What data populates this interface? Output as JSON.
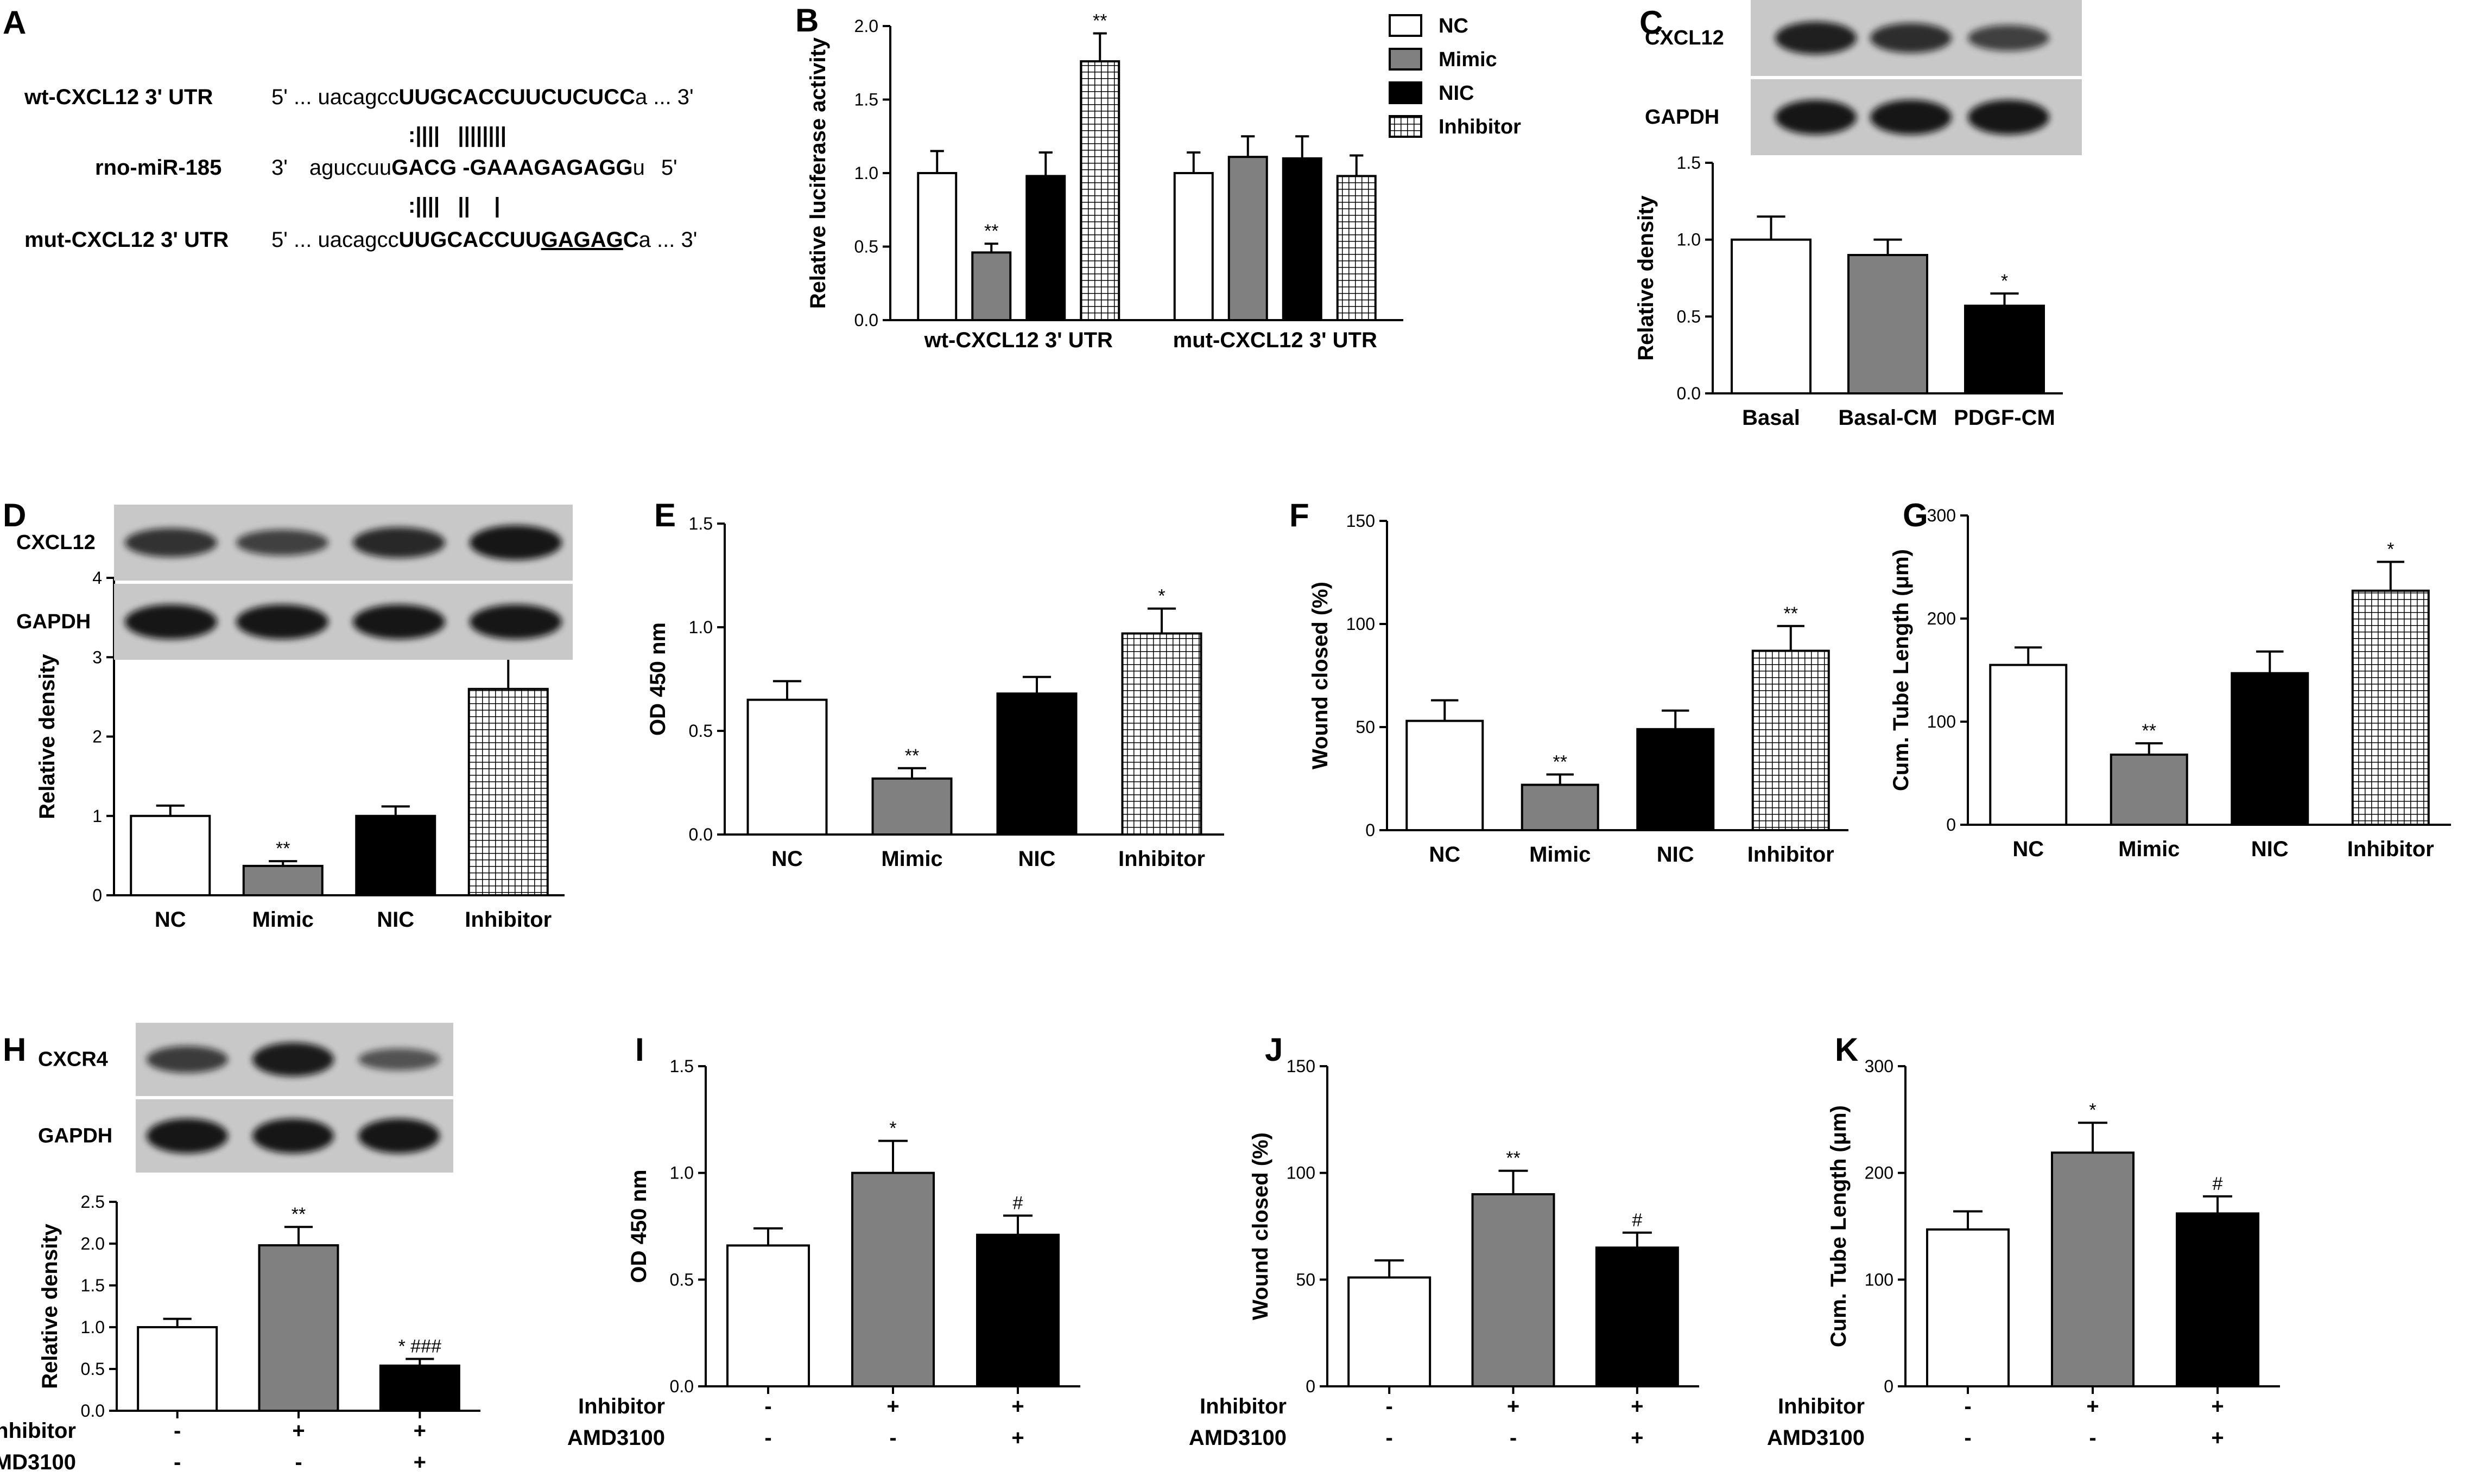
{
  "colors": {
    "NC": "#ffffff",
    "Mimic": "#808080",
    "NIC": "#000000",
    "Inhibitor": "hatched-white-black",
    "blot_background": "#c8c8c8",
    "band": "#111111"
  },
  "panelA": {
    "label": "A",
    "rows": [
      {
        "name": "wt-CXCL12 3' UTR",
        "end5": "5' ... ",
        "lower": "uacagcc",
        "upper": "UUGCACCUUCUCUCC",
        "tail": "a",
        "end3": " ... 3'"
      },
      {
        "name": "rno-miR-185",
        "end5": "3'",
        "lower": "aguccuu",
        "upper": "GACG -GAAAGAGAGG",
        "tail": "u",
        "end3": "5'"
      },
      {
        "name": "mut-CXCL12 3' UTR",
        "end5": "5' ... ",
        "lower": "uacagcc",
        "upper": "UUGCACCUU",
        "mutated": "GAGAG",
        "tail2": "C",
        "tail": "a",
        "end3": " ... 3'"
      }
    ],
    "pair_top": ":||||   ||||||||",
    "pair_bottom": ":||||   ||    |"
  },
  "panelB_blot": {},
  "blots": [
    {
      "id": "C",
      "rows": [
        "CXCL12",
        "GAPDH"
      ]
    },
    {
      "id": "D",
      "rows": [
        "CXCL12",
        "GAPDH"
      ]
    },
    {
      "id": "H",
      "rows": [
        "CXCR4",
        "GAPDH"
      ]
    }
  ],
  "chart_data": [
    {
      "panel": "B",
      "type": "bar",
      "ylabel": "Relative luciferase activity",
      "ylim": [
        0,
        2.0
      ],
      "yticks": [
        "0.0",
        "0.5",
        "1.0",
        "1.5",
        "2.0"
      ],
      "groups": [
        "wt-CXCL12 3' UTR",
        "mut-CXCL12 3' UTR"
      ],
      "legend": [
        "NC",
        "Mimic",
        "NIC",
        "Inhibitor"
      ],
      "series": [
        {
          "name": "NC",
          "values": [
            1.0,
            1.0
          ],
          "errors": [
            0.15,
            0.14
          ],
          "sig": [
            "",
            ""
          ]
        },
        {
          "name": "Mimic",
          "values": [
            0.46,
            1.11
          ],
          "errors": [
            0.06,
            0.14
          ],
          "sig": [
            "**",
            ""
          ]
        },
        {
          "name": "NIC",
          "values": [
            0.98,
            1.1
          ],
          "errors": [
            0.16,
            0.15
          ],
          "sig": [
            "",
            ""
          ]
        },
        {
          "name": "Inhibitor",
          "values": [
            1.76,
            0.98
          ],
          "errors": [
            0.19,
            0.14
          ],
          "sig": [
            "**",
            ""
          ]
        }
      ]
    },
    {
      "panel": "C",
      "type": "bar",
      "ylabel": "Relative density",
      "ylim": [
        0,
        1.5
      ],
      "yticks": [
        "0.0",
        "0.5",
        "1.0",
        "1.5"
      ],
      "categories": [
        "Basal",
        "Basal-CM",
        "PDGF-CM"
      ],
      "values": [
        1.0,
        0.9,
        0.57
      ],
      "errors": [
        0.15,
        0.1,
        0.08
      ],
      "sig": [
        "",
        "",
        "*"
      ]
    },
    {
      "panel": "D",
      "type": "bar",
      "ylabel": "Relative density",
      "ylim": [
        0,
        4
      ],
      "yticks": [
        "0",
        "1",
        "2",
        "3",
        "4"
      ],
      "categories": [
        "NC",
        "Mimic",
        "NIC",
        "Inhibitor"
      ],
      "values": [
        1.0,
        0.37,
        1.0,
        2.6
      ],
      "errors": [
        0.13,
        0.06,
        0.12,
        0.55
      ],
      "sig": [
        "",
        "**",
        "",
        "**"
      ]
    },
    {
      "panel": "E",
      "type": "bar",
      "ylabel": "OD 450 nm",
      "ylim": [
        0,
        1.5
      ],
      "yticks": [
        "0.0",
        "0.5",
        "1.0",
        "1.5"
      ],
      "categories": [
        "NC",
        "Mimic",
        "NIC",
        "Inhibitor"
      ],
      "values": [
        0.65,
        0.27,
        0.68,
        0.97
      ],
      "errors": [
        0.09,
        0.05,
        0.08,
        0.12
      ],
      "sig": [
        "",
        "**",
        "",
        "*"
      ]
    },
    {
      "panel": "F",
      "type": "bar",
      "ylabel": "Wound closed (%)",
      "ylim": [
        0,
        150
      ],
      "yticks": [
        "0",
        "50",
        "100",
        "150"
      ],
      "categories": [
        "NC",
        "Mimic",
        "NIC",
        "Inhibitor"
      ],
      "values": [
        53,
        22,
        49,
        87
      ],
      "errors": [
        10,
        5,
        9,
        12
      ],
      "sig": [
        "",
        "**",
        "",
        "**"
      ]
    },
    {
      "panel": "G",
      "type": "bar",
      "ylabel": "Cum. Tube Length (μm)",
      "ylim": [
        0,
        300
      ],
      "yticks": [
        "0",
        "100",
        "200",
        "300"
      ],
      "categories": [
        "NC",
        "Mimic",
        "NIC",
        "Inhibitor"
      ],
      "values": [
        155,
        68,
        147,
        227
      ],
      "errors": [
        17,
        11,
        21,
        28
      ],
      "sig": [
        "",
        "**",
        "",
        "*"
      ]
    },
    {
      "panel": "H",
      "type": "bar",
      "ylabel": "Relative density",
      "ylim": [
        0,
        2.5
      ],
      "yticks": [
        "0.0",
        "0.5",
        "1.0",
        "1.5",
        "2.0",
        "2.5"
      ],
      "rows": [
        {
          "name": "Inhibitor",
          "signs": [
            "-",
            "+",
            "+"
          ]
        },
        {
          "name": "AMD3100",
          "signs": [
            "-",
            "-",
            "+"
          ]
        }
      ],
      "values": [
        1.0,
        1.98,
        0.54
      ],
      "errors": [
        0.1,
        0.22,
        0.08
      ],
      "sig": [
        "",
        "**",
        "* ###"
      ]
    },
    {
      "panel": "I",
      "type": "bar",
      "ylabel": "OD 450 nm",
      "ylim": [
        0,
        1.5
      ],
      "yticks": [
        "0.0",
        "0.5",
        "1.0",
        "1.5"
      ],
      "rows": [
        {
          "name": "Inhibitor",
          "signs": [
            "-",
            "+",
            "+"
          ]
        },
        {
          "name": "AMD3100",
          "signs": [
            "-",
            "-",
            "+"
          ]
        }
      ],
      "values": [
        0.66,
        1.0,
        0.71
      ],
      "errors": [
        0.08,
        0.15,
        0.09
      ],
      "sig": [
        "",
        "*",
        "#"
      ]
    },
    {
      "panel": "J",
      "type": "bar",
      "ylabel": "Wound closed (%)",
      "ylim": [
        0,
        150
      ],
      "yticks": [
        "0",
        "50",
        "100",
        "150"
      ],
      "rows": [
        {
          "name": "Inhibitor",
          "signs": [
            "-",
            "+",
            "+"
          ]
        },
        {
          "name": "AMD3100",
          "signs": [
            "-",
            "-",
            "+"
          ]
        }
      ],
      "values": [
        51,
        90,
        65
      ],
      "errors": [
        8,
        11,
        7
      ],
      "sig": [
        "",
        "**",
        "#"
      ]
    },
    {
      "panel": "K",
      "type": "bar",
      "ylabel": "Cum. Tube Length (μm)",
      "ylim": [
        0,
        300
      ],
      "yticks": [
        "0",
        "100",
        "200",
        "300"
      ],
      "rows": [
        {
          "name": "Inhibitor",
          "signs": [
            "-",
            "+",
            "+"
          ]
        },
        {
          "name": "AMD3100",
          "signs": [
            "-",
            "-",
            "+"
          ]
        }
      ],
      "values": [
        147,
        219,
        162
      ],
      "errors": [
        17,
        28,
        16
      ],
      "sig": [
        "",
        "*",
        "#"
      ]
    }
  ]
}
